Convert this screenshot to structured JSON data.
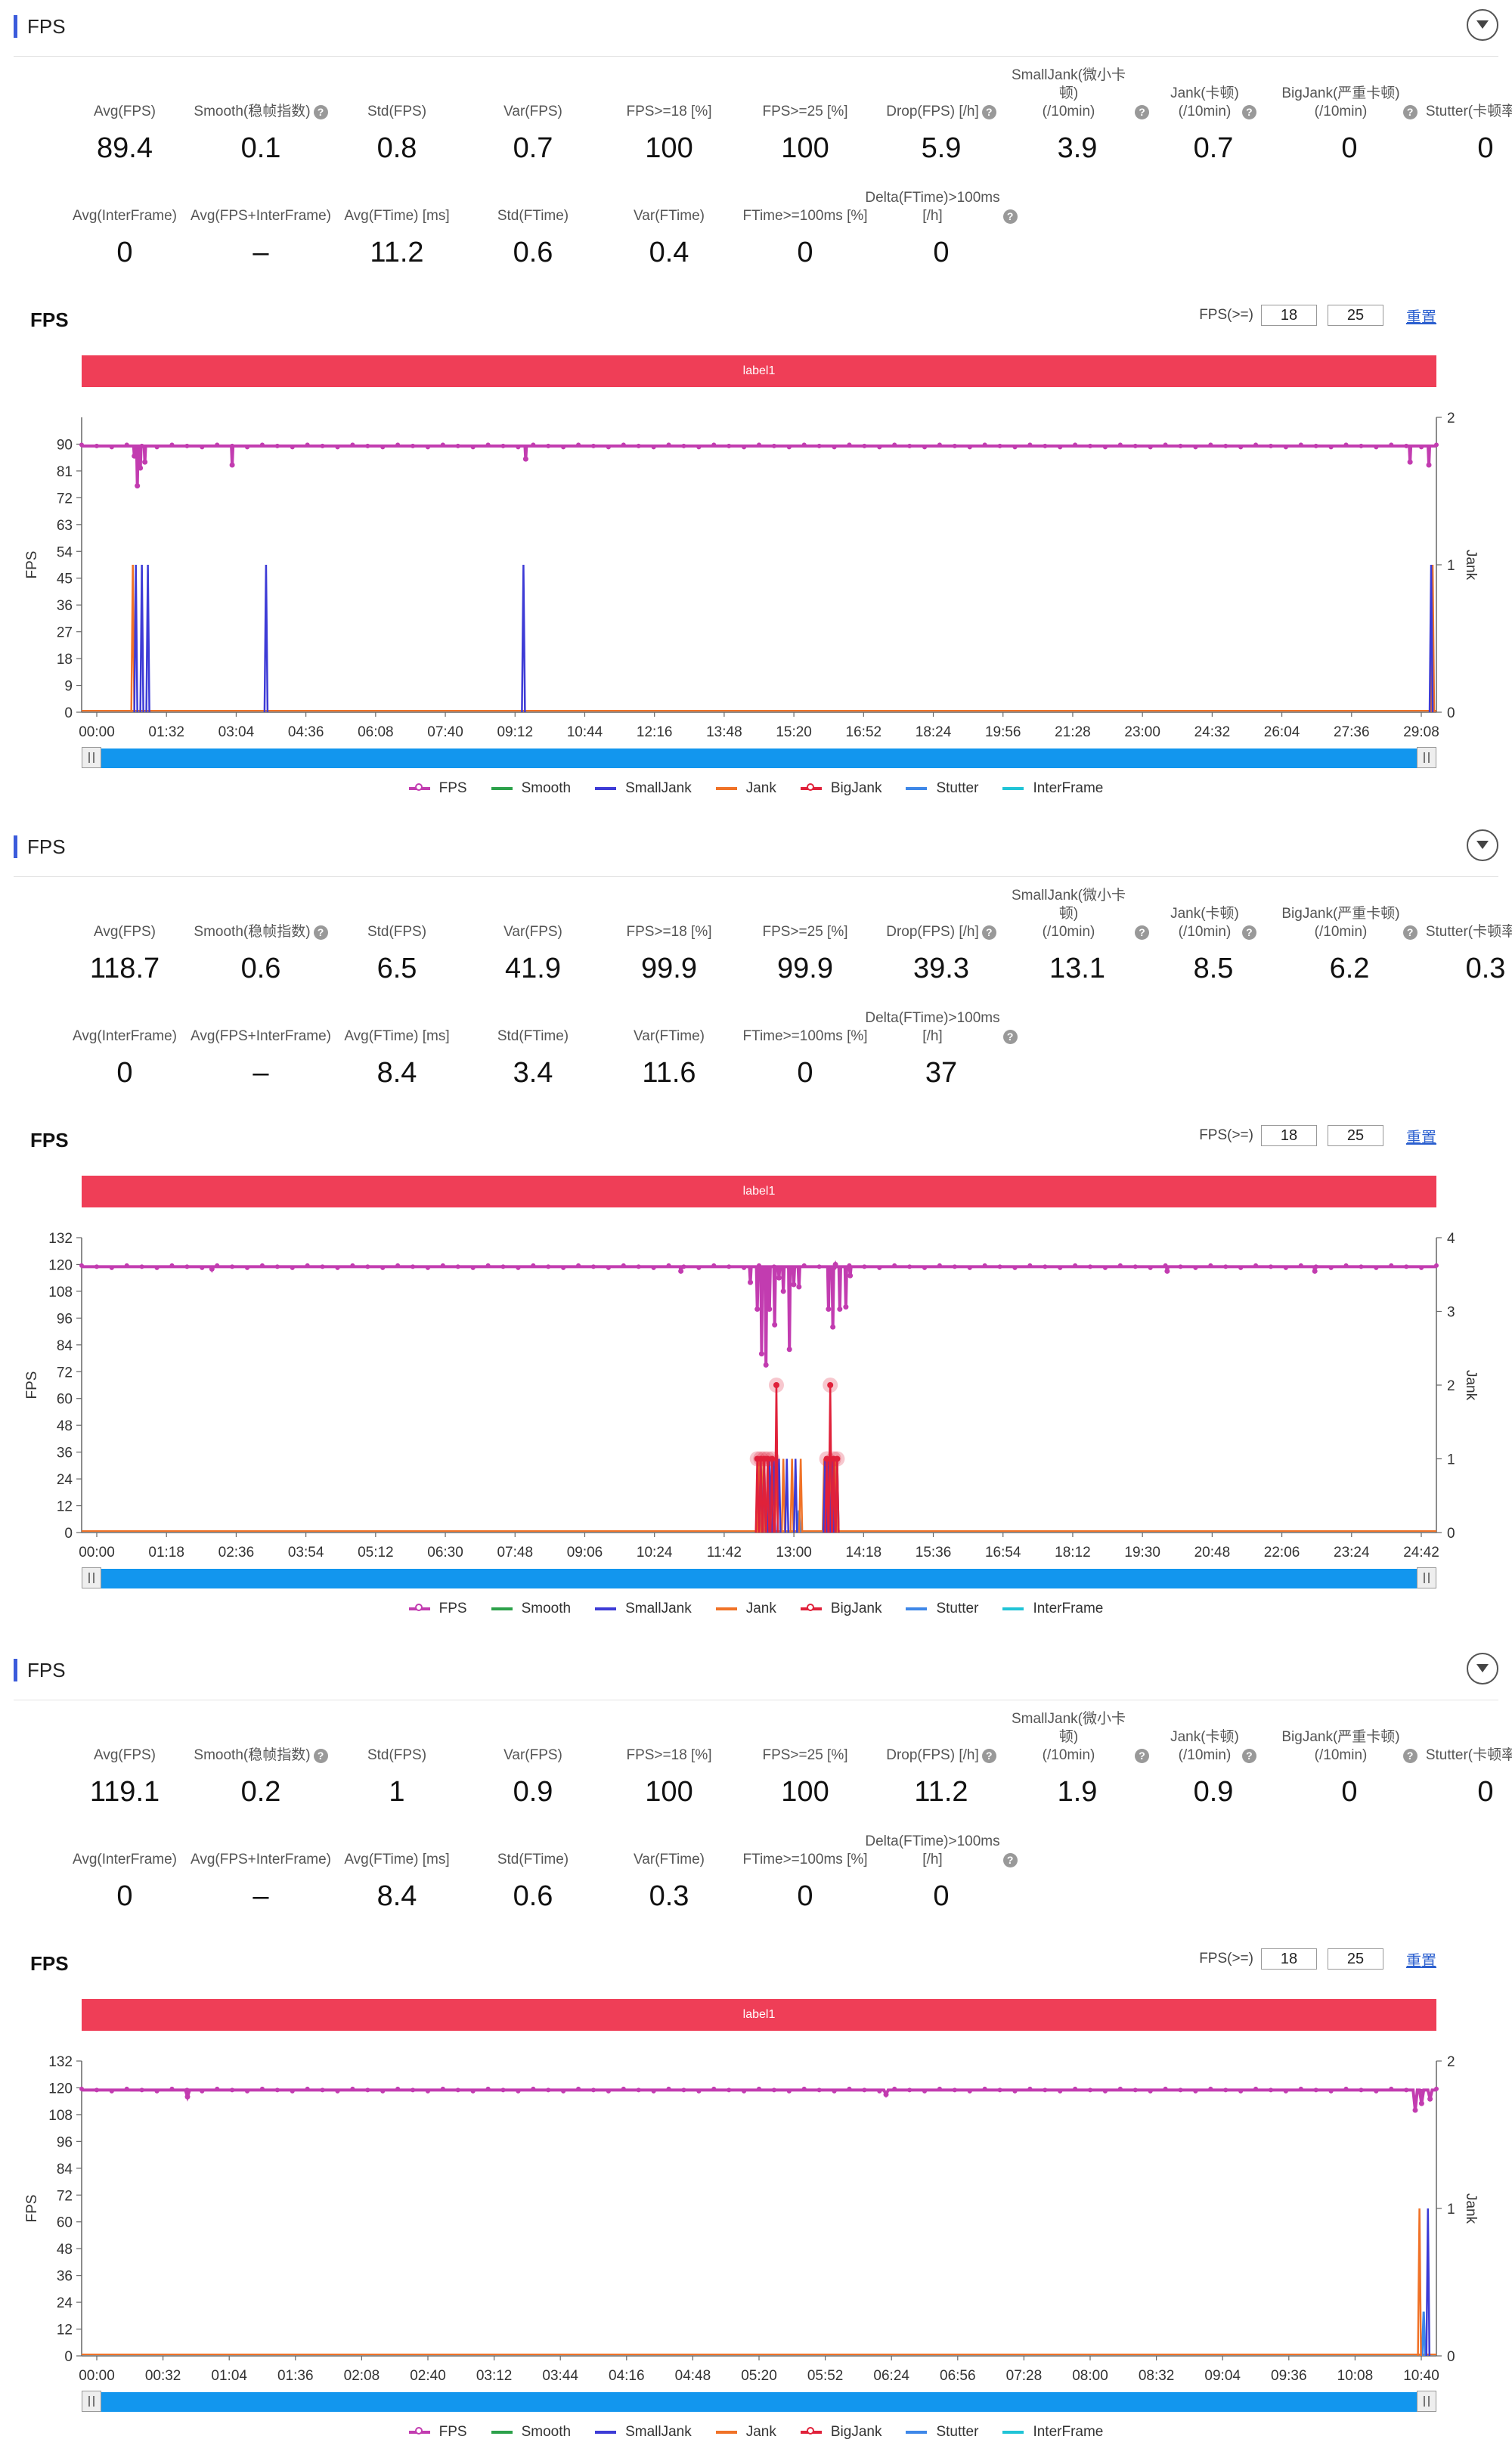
{
  "panels": [
    {
      "header_title": "FPS",
      "metrics_row1": [
        {
          "label": "Avg(FPS)",
          "value": "89.4",
          "help": false
        },
        {
          "label": "Smooth(稳帧指数)",
          "value": "0.1",
          "help": true
        },
        {
          "label": "Std(FPS)",
          "value": "0.8",
          "help": false
        },
        {
          "label": "Var(FPS)",
          "value": "0.7",
          "help": false
        },
        {
          "label": "FPS>=18 [%]",
          "value": "100",
          "help": false
        },
        {
          "label": "FPS>=25 [%]",
          "value": "100",
          "help": false
        },
        {
          "label": "Drop(FPS) [/h]",
          "value": "5.9",
          "help": true
        },
        {
          "label": "SmallJank(微小卡顿)\n(/10min)",
          "value": "3.9",
          "help": true
        },
        {
          "label": "Jank(卡顿)\n(/10min)",
          "value": "0.7",
          "help": true
        },
        {
          "label": "BigJank(严重卡顿)\n(/10min)",
          "value": "0",
          "help": true
        },
        {
          "label": "Stutter(卡顿率) [%]",
          "value": "0",
          "help": false
        }
      ],
      "metrics_row2": [
        {
          "label": "Avg(InterFrame)",
          "value": "0",
          "help": false
        },
        {
          "label": "Avg(FPS+InterFrame)",
          "value": "–",
          "help": false
        },
        {
          "label": "Avg(FTime) [ms]",
          "value": "11.2",
          "help": false
        },
        {
          "label": "Std(FTime)",
          "value": "0.6",
          "help": false
        },
        {
          "label": "Var(FTime)",
          "value": "0.4",
          "help": false
        },
        {
          "label": "FTime>=100ms [%]",
          "value": "0",
          "help": false
        },
        {
          "label": "Delta(FTime)>100ms [/h]",
          "value": "0",
          "help": true
        }
      ],
      "chart_title": "FPS",
      "threshold_label": "FPS(>=)",
      "threshold_values": [
        "18",
        "25"
      ],
      "reset_label": "重置",
      "label_bar": "label1",
      "chart_data": {
        "type": "line",
        "ylabel": "FPS",
        "y2label": "Jank",
        "y_ticks": [
          0,
          9,
          18,
          27,
          36,
          45,
          54,
          63,
          72,
          81,
          90
        ],
        "ylim": [
          0,
          99
        ],
        "y2_ticks": [
          0,
          1,
          2
        ],
        "y2lim": [
          0,
          2
        ],
        "x_ticks": [
          "00:00",
          "01:32",
          "03:04",
          "04:36",
          "06:08",
          "07:40",
          "09:12",
          "10:44",
          "12:16",
          "13:48",
          "15:20",
          "16:52",
          "18:24",
          "19:56",
          "21:28",
          "23:00",
          "24:32",
          "26:04",
          "27:36",
          "29:08"
        ],
        "xlim": [
          0,
          1800
        ],
        "fps_baseline": 89.4,
        "fps_dips": [
          [
            70,
            86
          ],
          [
            74,
            76
          ],
          [
            78,
            82
          ],
          [
            84,
            84
          ],
          [
            200,
            83
          ],
          [
            590,
            85
          ],
          [
            1765,
            84
          ],
          [
            1790,
            83
          ]
        ],
        "small_jank": [
          72,
          80,
          88,
          245,
          587,
          1793
        ],
        "jank": [
          68,
          1795
        ],
        "big_jank": [],
        "stutter": []
      }
    },
    {
      "header_title": "FPS",
      "metrics_row1": [
        {
          "label": "Avg(FPS)",
          "value": "118.7",
          "help": false
        },
        {
          "label": "Smooth(稳帧指数)",
          "value": "0.6",
          "help": true
        },
        {
          "label": "Std(FPS)",
          "value": "6.5",
          "help": false
        },
        {
          "label": "Var(FPS)",
          "value": "41.9",
          "help": false
        },
        {
          "label": "FPS>=18 [%]",
          "value": "99.9",
          "help": false
        },
        {
          "label": "FPS>=25 [%]",
          "value": "99.9",
          "help": false
        },
        {
          "label": "Drop(FPS) [/h]",
          "value": "39.3",
          "help": true
        },
        {
          "label": "SmallJank(微小卡顿)\n(/10min)",
          "value": "13.1",
          "help": true
        },
        {
          "label": "Jank(卡顿)\n(/10min)",
          "value": "8.5",
          "help": true
        },
        {
          "label": "BigJank(严重卡顿)\n(/10min)",
          "value": "6.2",
          "help": true
        },
        {
          "label": "Stutter(卡顿率) [%]",
          "value": "0.3",
          "help": false
        }
      ],
      "metrics_row2": [
        {
          "label": "Avg(InterFrame)",
          "value": "0",
          "help": false
        },
        {
          "label": "Avg(FPS+InterFrame)",
          "value": "–",
          "help": false
        },
        {
          "label": "Avg(FTime) [ms]",
          "value": "8.4",
          "help": false
        },
        {
          "label": "Std(FTime)",
          "value": "3.4",
          "help": false
        },
        {
          "label": "Var(FTime)",
          "value": "11.6",
          "help": false
        },
        {
          "label": "FTime>=100ms [%]",
          "value": "0",
          "help": false
        },
        {
          "label": "Delta(FTime)>100ms [/h]",
          "value": "37",
          "help": true
        }
      ],
      "chart_title": "FPS",
      "threshold_label": "FPS(>=)",
      "threshold_values": [
        "18",
        "25"
      ],
      "reset_label": "重置",
      "label_bar": "label1",
      "chart_data": {
        "type": "line",
        "ylabel": "FPS",
        "y2label": "Jank",
        "y_ticks": [
          0,
          12,
          24,
          36,
          48,
          60,
          72,
          84,
          96,
          108,
          120,
          132
        ],
        "ylim": [
          0,
          132
        ],
        "y2_ticks": [
          0,
          1,
          2,
          3,
          4
        ],
        "y2lim": [
          0,
          4
        ],
        "x_ticks": [
          "00:00",
          "01:18",
          "02:36",
          "03:54",
          "05:12",
          "06:30",
          "07:48",
          "09:06",
          "10:24",
          "11:42",
          "13:00",
          "14:18",
          "15:36",
          "16:54",
          "18:12",
          "19:30",
          "20:48",
          "22:06",
          "23:24",
          "24:42"
        ],
        "xlim": [
          0,
          1560
        ],
        "fps_baseline": 119,
        "fps_dips": [
          [
            770,
            112
          ],
          [
            778,
            100
          ],
          [
            783,
            80
          ],
          [
            788,
            75
          ],
          [
            792,
            100
          ],
          [
            798,
            93
          ],
          [
            803,
            114
          ],
          [
            808,
            108
          ],
          [
            815,
            82
          ],
          [
            820,
            111
          ],
          [
            826,
            110
          ],
          [
            860,
            100
          ],
          [
            865,
            92
          ],
          [
            868,
            120
          ],
          [
            873,
            100
          ],
          [
            880,
            101
          ],
          [
            885,
            115
          ],
          [
            150,
            118
          ],
          [
            690,
            117
          ],
          [
            1250,
            117
          ],
          [
            1420,
            117
          ]
        ],
        "small_jank": [
          782,
          786,
          792,
          797,
          803,
          812,
          822,
          856,
          860,
          864,
          870
        ],
        "jank": [
          780,
          785,
          790,
          800,
          808,
          818,
          828,
          855,
          862,
          868
        ],
        "big_jank": [
          [
            778,
            1
          ],
          [
            782,
            1
          ],
          [
            786,
            1
          ],
          [
            790,
            1
          ],
          [
            795,
            1
          ],
          [
            800,
            2
          ],
          [
            858,
            1
          ],
          [
            862,
            2
          ],
          [
            866,
            1
          ],
          [
            870,
            1
          ]
        ],
        "stutter": [
          788,
          826,
          864,
          869
        ]
      }
    },
    {
      "header_title": "FPS",
      "metrics_row1": [
        {
          "label": "Avg(FPS)",
          "value": "119.1",
          "help": false
        },
        {
          "label": "Smooth(稳帧指数)",
          "value": "0.2",
          "help": true
        },
        {
          "label": "Std(FPS)",
          "value": "1",
          "help": false
        },
        {
          "label": "Var(FPS)",
          "value": "0.9",
          "help": false
        },
        {
          "label": "FPS>=18 [%]",
          "value": "100",
          "help": false
        },
        {
          "label": "FPS>=25 [%]",
          "value": "100",
          "help": false
        },
        {
          "label": "Drop(FPS) [/h]",
          "value": "11.2",
          "help": true
        },
        {
          "label": "SmallJank(微小卡顿)\n(/10min)",
          "value": "1.9",
          "help": true
        },
        {
          "label": "Jank(卡顿)\n(/10min)",
          "value": "0.9",
          "help": true
        },
        {
          "label": "BigJank(严重卡顿)\n(/10min)",
          "value": "0",
          "help": true
        },
        {
          "label": "Stutter(卡顿率) [%]",
          "value": "0",
          "help": false
        }
      ],
      "metrics_row2": [
        {
          "label": "Avg(InterFrame)",
          "value": "0",
          "help": false
        },
        {
          "label": "Avg(FPS+InterFrame)",
          "value": "–",
          "help": false
        },
        {
          "label": "Avg(FTime) [ms]",
          "value": "8.4",
          "help": false
        },
        {
          "label": "Std(FTime)",
          "value": "0.6",
          "help": false
        },
        {
          "label": "Var(FTime)",
          "value": "0.3",
          "help": false
        },
        {
          "label": "FTime>=100ms [%]",
          "value": "0",
          "help": false
        },
        {
          "label": "Delta(FTime)>100ms [/h]",
          "value": "0",
          "help": true
        }
      ],
      "chart_title": "FPS",
      "threshold_label": "FPS(>=)",
      "threshold_values": [
        "18",
        "25"
      ],
      "reset_label": "重置",
      "label_bar": "label1",
      "chart_data": {
        "type": "line",
        "ylabel": "FPS",
        "y2label": "Jank",
        "y_ticks": [
          0,
          12,
          24,
          36,
          48,
          60,
          72,
          84,
          96,
          108,
          120,
          132
        ],
        "ylim": [
          0,
          132
        ],
        "y2_ticks": [
          0,
          1,
          2
        ],
        "y2lim": [
          0,
          2
        ],
        "x_ticks": [
          "00:00",
          "00:32",
          "01:04",
          "01:36",
          "02:08",
          "02:40",
          "03:12",
          "03:44",
          "04:16",
          "04:48",
          "05:20",
          "05:52",
          "06:24",
          "06:56",
          "07:28",
          "08:00",
          "08:32",
          "09:04",
          "09:36",
          "10:08",
          "10:40"
        ],
        "xlim": [
          0,
          640
        ],
        "fps_baseline": 119,
        "fps_dips": [
          [
            50,
            116
          ],
          [
            380,
            117
          ],
          [
            630,
            110
          ],
          [
            633,
            113
          ],
          [
            637,
            115
          ]
        ],
        "small_jank": [
          636
        ],
        "jank": [
          632
        ],
        "big_jank": [],
        "stutter": [
          634
        ]
      }
    }
  ],
  "legend": [
    {
      "name": "FPS",
      "color": "#c23cb0",
      "marker": true
    },
    {
      "name": "Smooth",
      "color": "#2ca14a",
      "marker": false
    },
    {
      "name": "SmallJank",
      "color": "#3d3bd6",
      "marker": false
    },
    {
      "name": "Jank",
      "color": "#f07227",
      "marker": false
    },
    {
      "name": "BigJank",
      "color": "#e0213a",
      "marker": true
    },
    {
      "name": "Stutter",
      "color": "#3e87e8",
      "marker": false
    },
    {
      "name": "InterFrame",
      "color": "#20c4d6",
      "marker": false
    }
  ]
}
